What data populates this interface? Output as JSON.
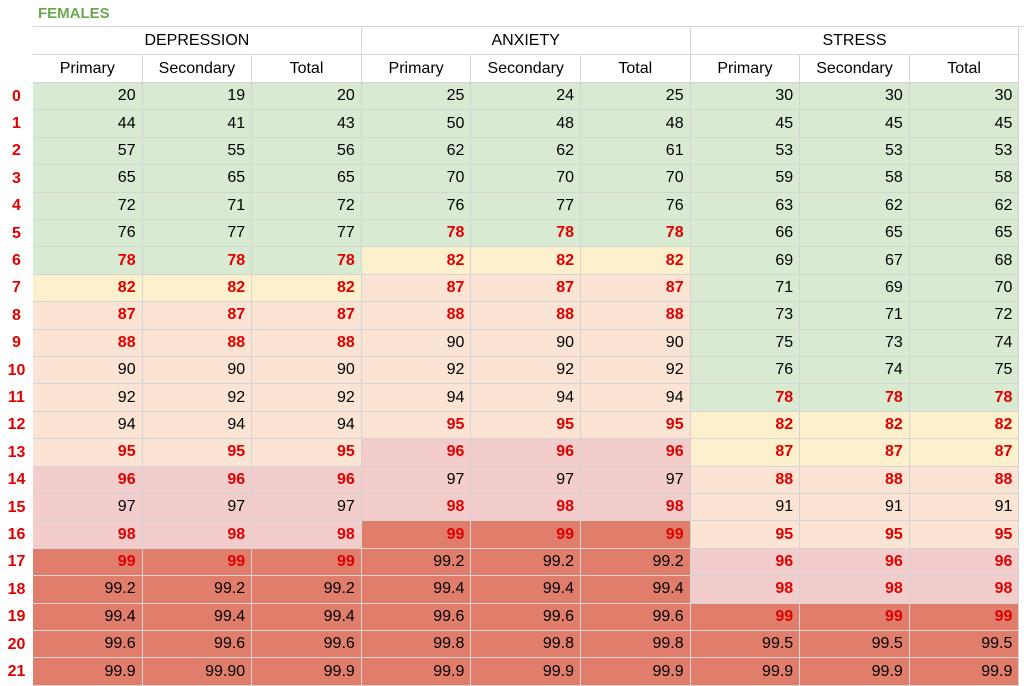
{
  "title": "FEMALES",
  "groups": [
    "DEPRESSION",
    "ANXIETY",
    "STRESS"
  ],
  "columns": [
    "Primary",
    "Secondary",
    "Total",
    "Primary",
    "Secondary",
    "Total",
    "Primary",
    "Secondary",
    "Total"
  ],
  "row_labels": [
    0,
    1,
    2,
    3,
    4,
    5,
    6,
    7,
    8,
    9,
    10,
    11,
    12,
    13,
    14,
    15,
    16,
    17,
    18,
    19,
    20,
    21
  ],
  "rows": [
    [
      20,
      19,
      20,
      25,
      24,
      25,
      30,
      30,
      30
    ],
    [
      44,
      41,
      43,
      50,
      48,
      48,
      45,
      45,
      45
    ],
    [
      57,
      55,
      56,
      62,
      62,
      61,
      53,
      53,
      53
    ],
    [
      65,
      65,
      65,
      70,
      70,
      70,
      59,
      58,
      58
    ],
    [
      72,
      71,
      72,
      76,
      77,
      76,
      63,
      62,
      62
    ],
    [
      76,
      77,
      77,
      78,
      78,
      78,
      66,
      65,
      65
    ],
    [
      78,
      78,
      78,
      82,
      82,
      82,
      69,
      67,
      68
    ],
    [
      82,
      82,
      82,
      87,
      87,
      87,
      71,
      69,
      70
    ],
    [
      87,
      87,
      87,
      88,
      88,
      88,
      73,
      71,
      72
    ],
    [
      88,
      88,
      88,
      90,
      90,
      90,
      75,
      73,
      74
    ],
    [
      90,
      90,
      90,
      92,
      92,
      92,
      76,
      74,
      75
    ],
    [
      92,
      92,
      92,
      94,
      94,
      94,
      78,
      78,
      78
    ],
    [
      94,
      94,
      94,
      95,
      95,
      95,
      82,
      82,
      82
    ],
    [
      95,
      95,
      95,
      96,
      96,
      96,
      87,
      87,
      87
    ],
    [
      96,
      96,
      96,
      97,
      97,
      97,
      88,
      88,
      88
    ],
    [
      97,
      97,
      97,
      98,
      98,
      98,
      91,
      91,
      91
    ],
    [
      98,
      98,
      98,
      99,
      99,
      99,
      95,
      95,
      95
    ],
    [
      99,
      99,
      99,
      99.2,
      99.2,
      99.2,
      96,
      96,
      96
    ],
    [
      99.2,
      99.2,
      99.2,
      99.4,
      99.4,
      99.4,
      98,
      98,
      98
    ],
    [
      99.4,
      99.4,
      99.4,
      99.6,
      99.6,
      99.6,
      99,
      99,
      99
    ],
    [
      99.6,
      99.6,
      99.6,
      99.8,
      99.8,
      99.8,
      99.5,
      99.5,
      99.5
    ],
    [
      99.9,
      "99.90",
      99.9,
      99.9,
      99.9,
      99.9,
      99.9,
      99.9,
      99.9
    ]
  ]
}
